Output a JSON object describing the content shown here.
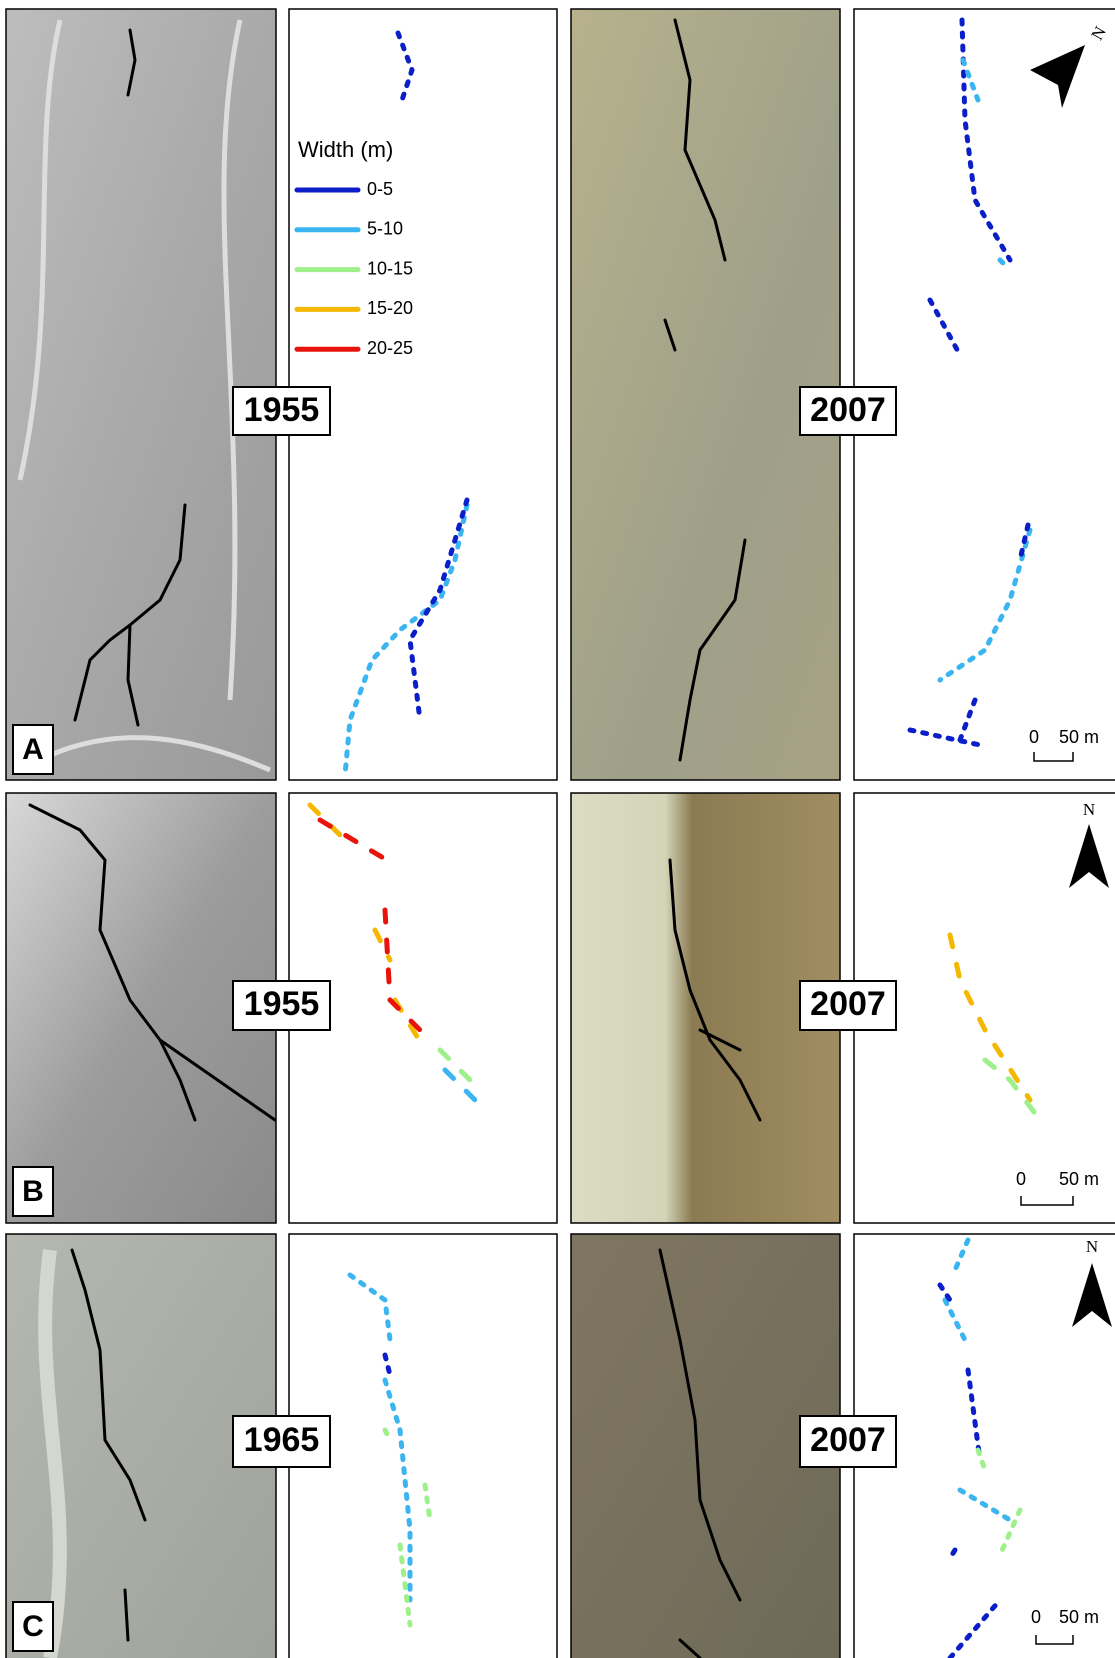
{
  "figure": {
    "legend": {
      "title": "Width (m)",
      "classes": [
        "0-5",
        "5-10",
        "10-15",
        "15-20",
        "20-25"
      ]
    },
    "rows": [
      {
        "label": "A",
        "years": [
          "1955",
          "2007"
        ],
        "north": "N",
        "scale_bar": {
          "zero": "0",
          "length": "50 m"
        }
      },
      {
        "label": "B",
        "years": [
          "1955",
          "2007"
        ],
        "north": "N",
        "scale_bar": {
          "zero": "0",
          "length": "50 m"
        }
      },
      {
        "label": "C",
        "years": [
          "1965",
          "2007"
        ],
        "north": "N",
        "scale_bar": {
          "zero": "0",
          "length": "50 m"
        }
      }
    ]
  }
}
